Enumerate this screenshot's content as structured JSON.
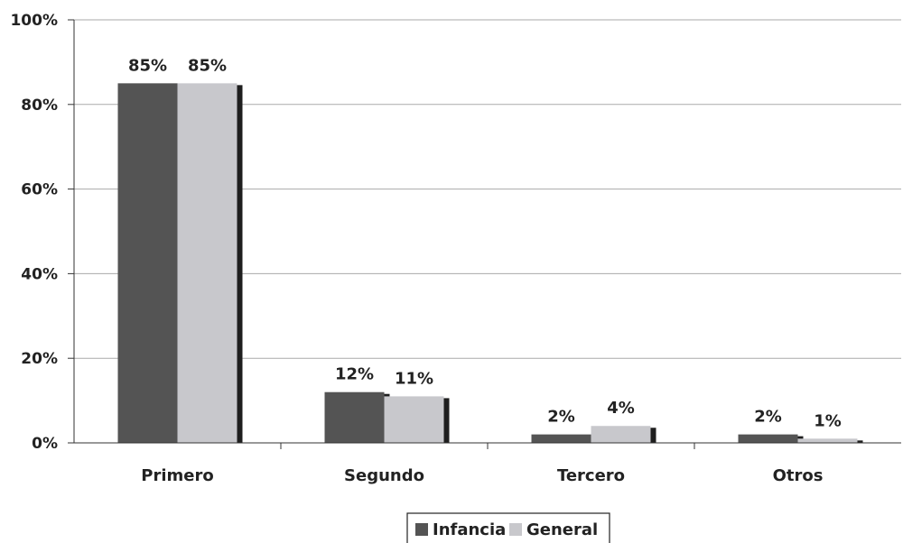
{
  "chart_data": {
    "type": "bar",
    "categories": [
      "Primero",
      "Segundo",
      "Tercero",
      "Otros"
    ],
    "series": [
      {
        "name": "Infancia",
        "values": [
          85,
          12,
          2,
          2
        ],
        "labels": [
          "85%",
          "12%",
          "2%",
          "2%"
        ]
      },
      {
        "name": "General",
        "values": [
          85,
          11,
          4,
          1
        ],
        "labels": [
          "85%",
          "11%",
          "4%",
          "1%"
        ]
      }
    ],
    "yticks": [
      "0%",
      "20%",
      "40%",
      "60%",
      "80%",
      "100%"
    ],
    "ylim": [
      0,
      100
    ],
    "grid": true,
    "legend_position": "bottom",
    "colors": {
      "Infancia": "#545454",
      "General": "#c8c8cc",
      "shadow": "#1e1e1e",
      "grid": "#aaaaaa",
      "axis": "#333333"
    }
  }
}
